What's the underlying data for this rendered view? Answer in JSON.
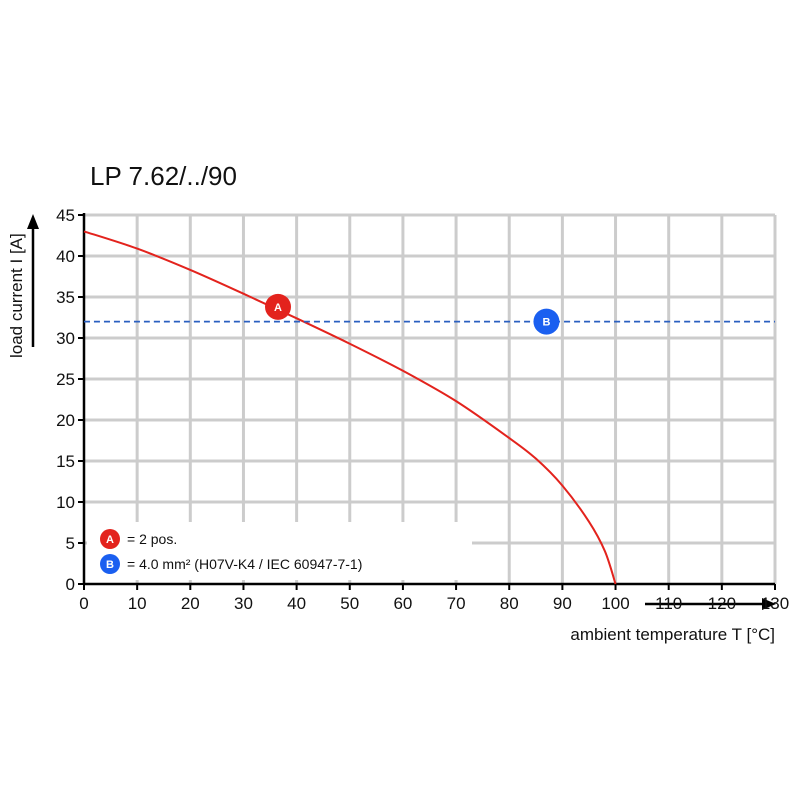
{
  "colors": {
    "curve": "#e3231d",
    "dashed": "#2a5fc0",
    "marker_a": "#e3231d",
    "marker_b": "#1a5ff0",
    "grid": "#cccccc",
    "axis": "#000000"
  },
  "chart_data": {
    "type": "line",
    "title": "LP 7.62/../90",
    "xlabel": "ambient temperature T [°C]",
    "ylabel": "load current I [A]",
    "xlim": [
      0,
      130
    ],
    "ylim": [
      0,
      45
    ],
    "x_ticks": [
      "0",
      "10",
      "20",
      "30",
      "40",
      "50",
      "60",
      "70",
      "80",
      "90",
      "100",
      "110",
      "120",
      "130"
    ],
    "y_ticks": [
      "0",
      "5",
      "10",
      "15",
      "20",
      "25",
      "30",
      "35",
      "40",
      "45"
    ],
    "grid": true,
    "series": [
      {
        "style": "solid",
        "x": [
          0,
          10,
          20,
          30,
          40,
          50,
          60,
          70,
          80,
          85,
          90,
          95,
          98,
          100
        ],
        "y": [
          43,
          40.9,
          38.3,
          35.4,
          32.4,
          29.3,
          26.0,
          22.3,
          17.8,
          15.3,
          12.0,
          7.6,
          4.0,
          0
        ]
      },
      {
        "style": "dashed",
        "x": [
          0,
          130
        ],
        "y": [
          32,
          32
        ]
      }
    ],
    "markers": [
      {
        "letter": "A",
        "x": 36.5,
        "y": 33.8
      },
      {
        "letter": "B",
        "x": 87,
        "y": 32
      }
    ],
    "legend": {
      "placement": "bottom-left",
      "items": [
        {
          "letter": "A",
          "text": "= 2 pos."
        },
        {
          "letter": "B",
          "text": "= 4.0 mm² (H07V-K4 / IEC 60947-7-1)"
        }
      ]
    }
  }
}
